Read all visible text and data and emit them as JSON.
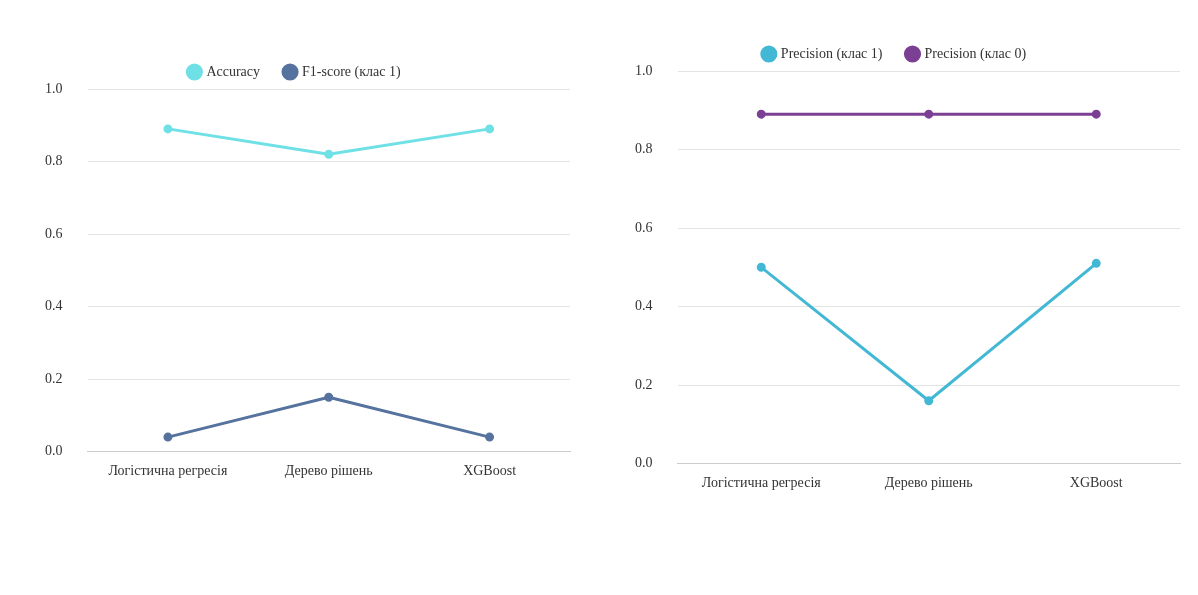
{
  "chart_data": [
    {
      "type": "line",
      "categories": [
        "Логістична регресія",
        "Дерево рішень",
        "XGBoost"
      ],
      "series": [
        {
          "name": "Accuracy",
          "color": "#6ee0e6",
          "values": [
            0.89,
            0.82,
            0.89
          ]
        },
        {
          "name": "F1-score (клас 1)",
          "color": "#56729e",
          "values": [
            0.04,
            0.15,
            0.04
          ]
        }
      ],
      "ylim": [
        0,
        1
      ],
      "yticks": [
        {
          "value": 0,
          "label": "0.0"
        },
        {
          "value": 0.2,
          "label": "0.2"
        },
        {
          "value": 0.4,
          "label": "0.4"
        },
        {
          "value": 0.6,
          "label": "0.6"
        },
        {
          "value": 0.8,
          "label": "0.8"
        },
        {
          "value": 1,
          "label": "1.0"
        }
      ],
      "grid": "y",
      "legend": "top",
      "marker": "circle"
    },
    {
      "type": "line",
      "categories": [
        "Логістична регресія",
        "Дерево рішень",
        "XGBoost"
      ],
      "series": [
        {
          "name": "Precision (клас 1)",
          "color": "#42b8d4",
          "values": [
            0.5,
            0.16,
            0.51
          ]
        },
        {
          "name": "Precision (клас 0)",
          "color": "#7b3f94",
          "values": [
            0.89,
            0.89,
            0.89
          ]
        }
      ],
      "ylim": [
        0,
        1
      ],
      "yticks": [
        {
          "value": 0,
          "label": "0.0"
        },
        {
          "value": 0.2,
          "label": "0.2"
        },
        {
          "value": 0.4,
          "label": "0.4"
        },
        {
          "value": 0.6,
          "label": "0.6"
        },
        {
          "value": 0.8,
          "label": "0.8"
        },
        {
          "value": 1,
          "label": "1.0"
        }
      ],
      "grid": "y",
      "legend": "top",
      "marker": "circle"
    }
  ]
}
